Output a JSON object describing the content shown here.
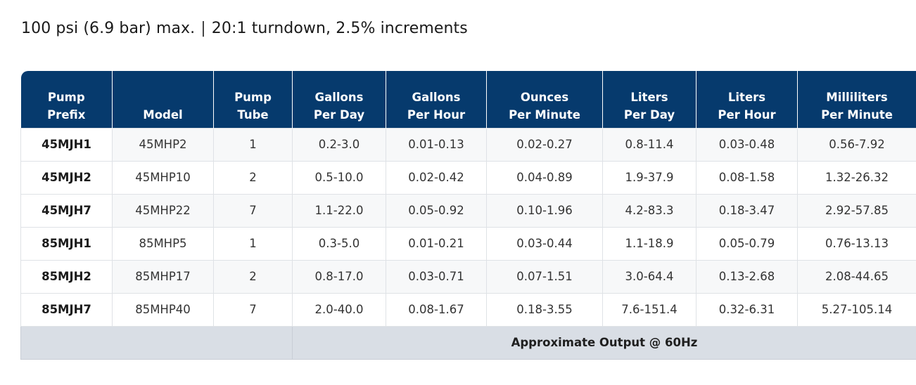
{
  "spec": {
    "pressure": "100 psi (6.9 bar) max.",
    "separator": "|",
    "turndown": "20:1 turndown, 2.5% increments"
  },
  "table": {
    "headers": [
      {
        "line1": "Pump",
        "line2": "Prefix"
      },
      {
        "line1": "",
        "line2": "Model"
      },
      {
        "line1": "Pump",
        "line2": "Tube"
      },
      {
        "line1": "Gallons",
        "line2": "Per Day"
      },
      {
        "line1": "Gallons",
        "line2": "Per Hour"
      },
      {
        "line1": "Ounces",
        "line2": "Per Minute"
      },
      {
        "line1": "Liters",
        "line2": "Per Day"
      },
      {
        "line1": "Liters",
        "line2": "Per Hour"
      },
      {
        "line1": "Milliliters",
        "line2": "Per Minute"
      }
    ],
    "rows": [
      [
        "45MJH1",
        "45MHP2",
        "1",
        "0.2-3.0",
        "0.01-0.13",
        "0.02-0.27",
        "0.8-11.4",
        "0.03-0.48",
        "0.56-7.92"
      ],
      [
        "45MJH2",
        "45MHP10",
        "2",
        "0.5-10.0",
        "0.02-0.42",
        "0.04-0.89",
        "1.9-37.9",
        "0.08-1.58",
        "1.32-26.32"
      ],
      [
        "45MJH7",
        "45MHP22",
        "7",
        "1.1-22.0",
        "0.05-0.92",
        "0.10-1.96",
        "4.2-83.3",
        "0.18-3.47",
        "2.92-57.85"
      ],
      [
        "85MJH1",
        "85MHP5",
        "1",
        "0.3-5.0",
        "0.01-0.21",
        "0.03-0.44",
        "1.1-18.9",
        "0.05-0.79",
        "0.76-13.13"
      ],
      [
        "85MJH2",
        "85MHP17",
        "2",
        "0.8-17.0",
        "0.03-0.71",
        "0.07-1.51",
        "3.0-64.4",
        "0.13-2.68",
        "2.08-44.65"
      ],
      [
        "85MJH7",
        "85MHP40",
        "7",
        "2.0-40.0",
        "0.08-1.67",
        "0.18-3.55",
        "7.6-151.4",
        "0.32-6.31",
        "5.27-105.14"
      ]
    ],
    "footer": "Approximate Output @ 60Hz"
  },
  "colors": {
    "header_bg": "#063a6d",
    "footer_bg": "#d9dee5"
  }
}
